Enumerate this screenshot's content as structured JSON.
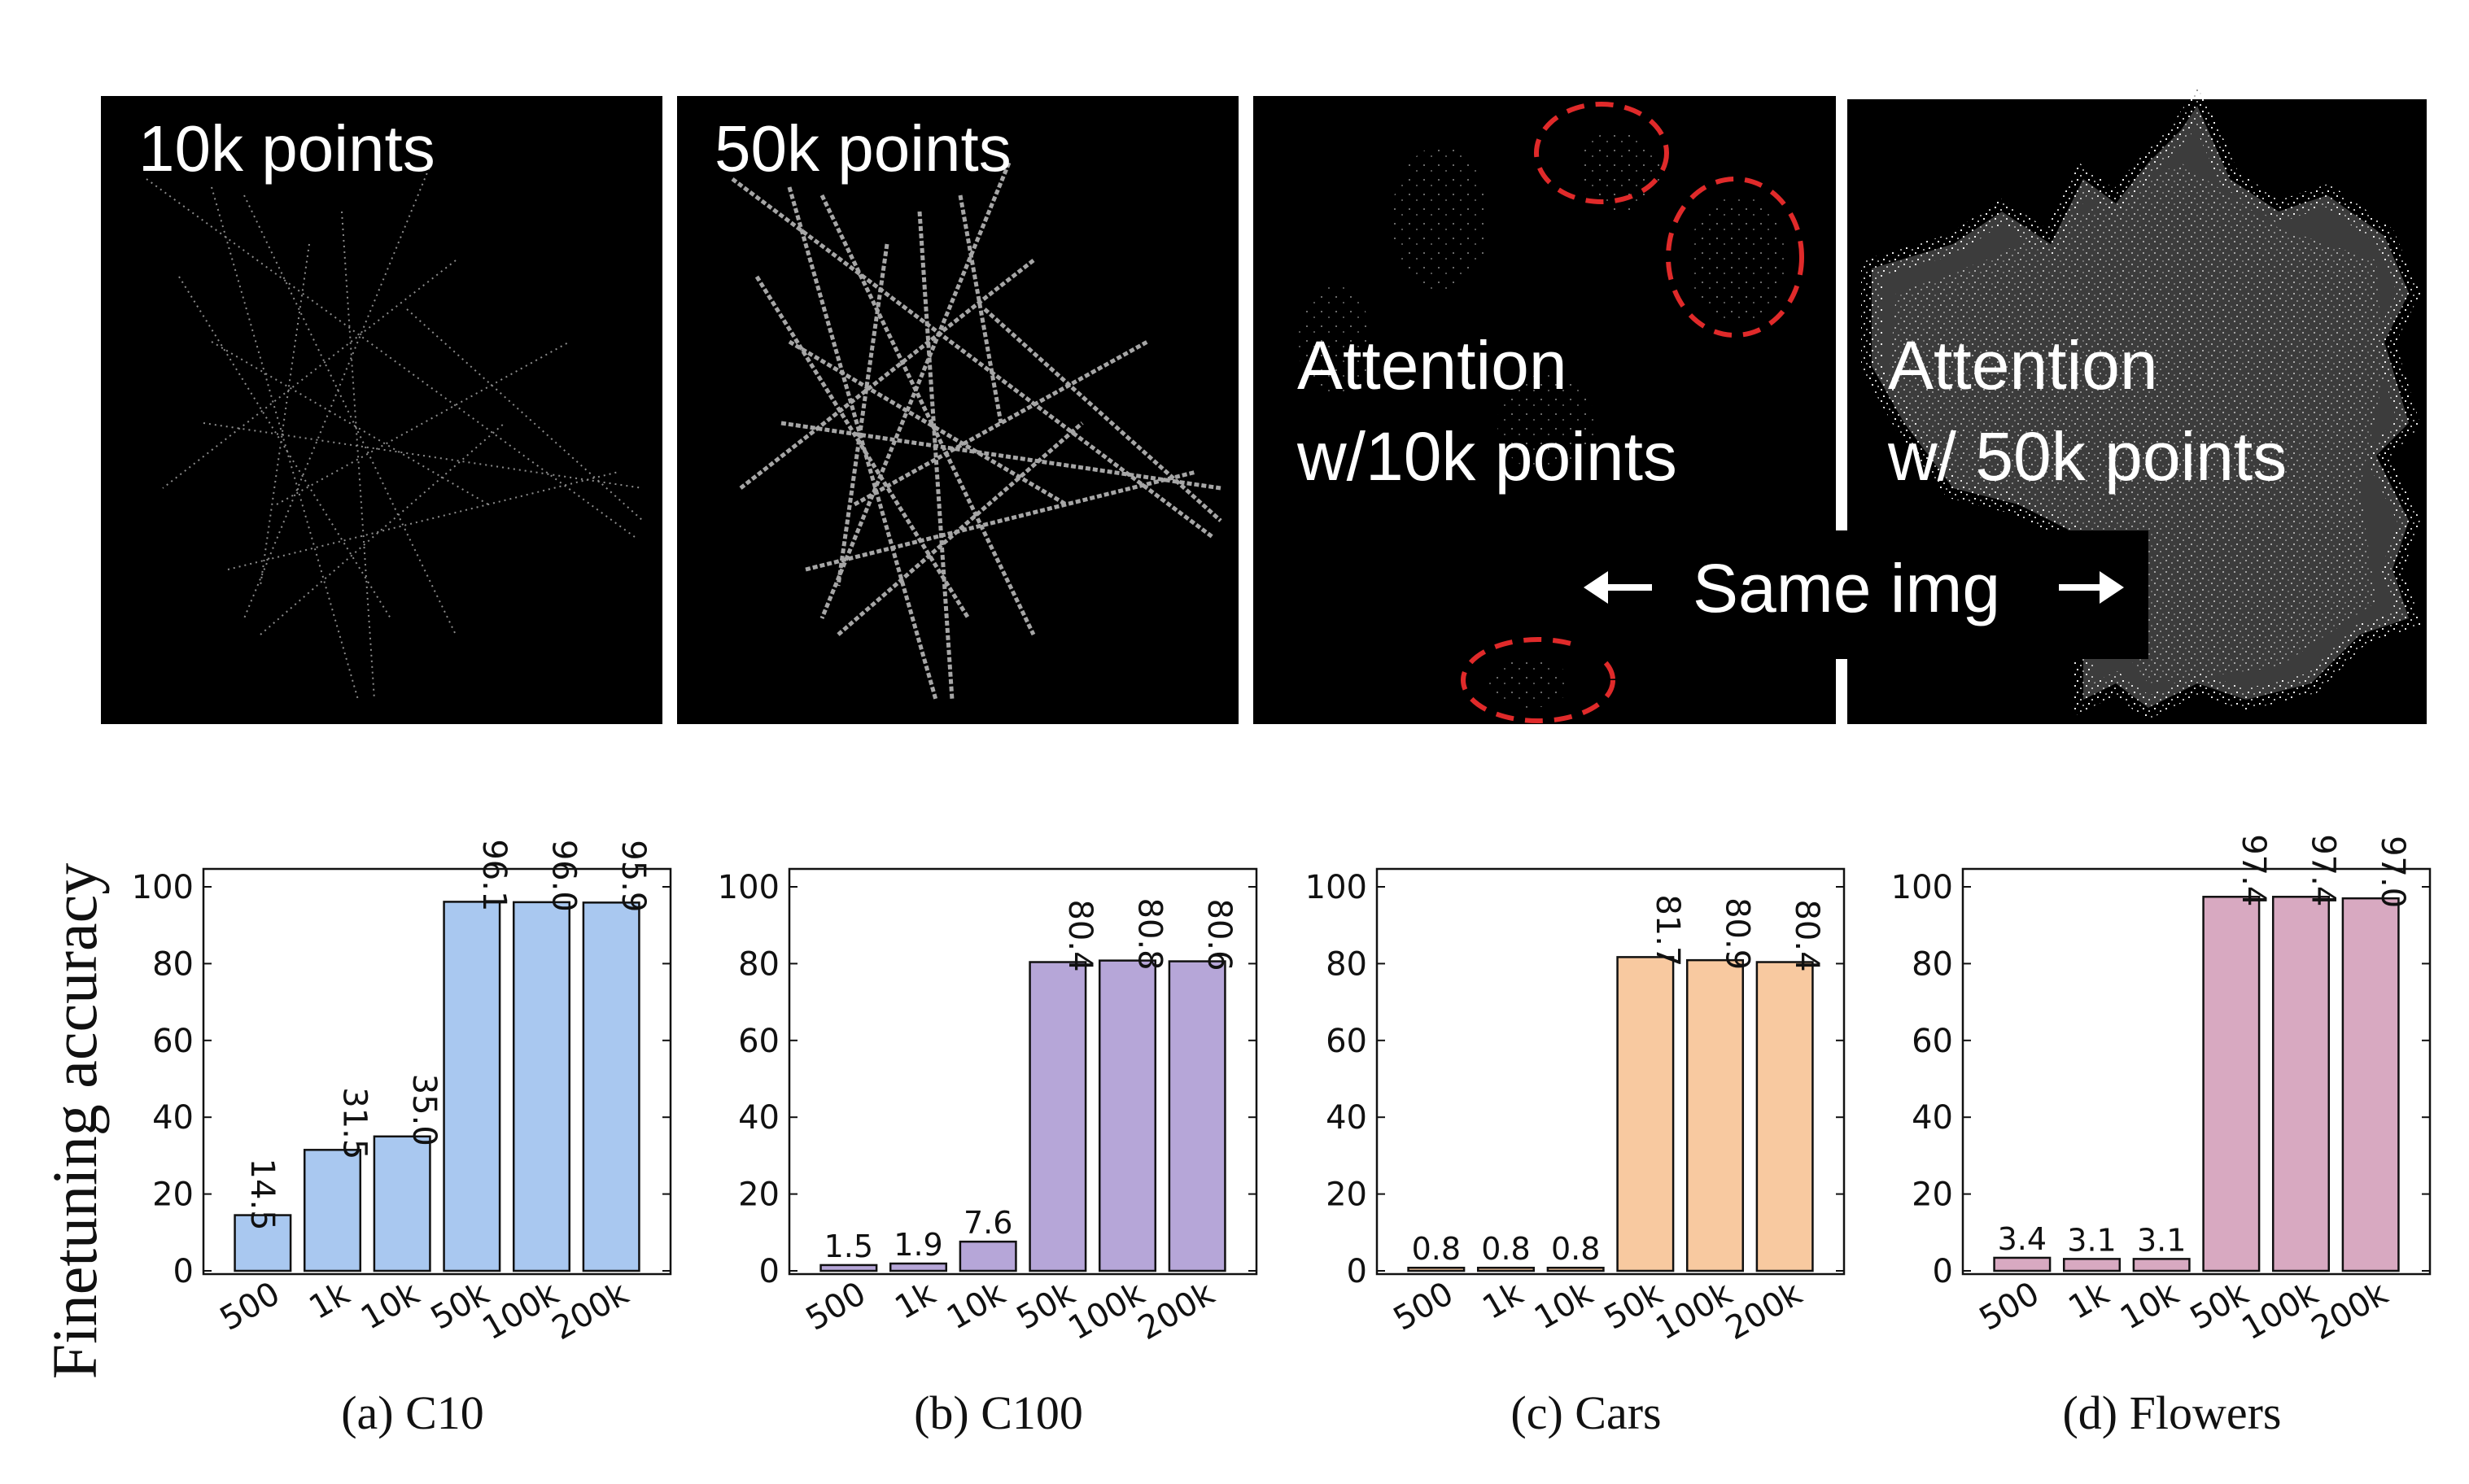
{
  "panels": [
    {
      "label": "10k points"
    },
    {
      "label": "50k points"
    },
    {
      "label_line1": "Attention",
      "label_line2": "w/10k points"
    },
    {
      "label_line1": "Attention",
      "label_line2": "w/ 50k points"
    }
  ],
  "same_img_label": "Same img",
  "ylabel": "Finetuning accuracy",
  "chart_data": [
    {
      "type": "bar",
      "caption": "(a)  C10",
      "categories": [
        "500",
        "1k",
        "10k",
        "50k",
        "100k",
        "200k"
      ],
      "values": [
        14.5,
        31.5,
        35.0,
        96.1,
        96.0,
        95.9
      ],
      "value_labels": [
        "14.5",
        "31.5",
        "35.0",
        "96.1",
        "96.0",
        "95.9"
      ],
      "color": "#a9c8f0",
      "ylim": [
        0,
        100
      ],
      "yticks": [
        "0",
        "20",
        "40",
        "60",
        "80",
        "100"
      ]
    },
    {
      "type": "bar",
      "caption": "(b)  C100",
      "categories": [
        "500",
        "1k",
        "10k",
        "50k",
        "100k",
        "200k"
      ],
      "values": [
        1.5,
        1.9,
        7.6,
        80.4,
        80.8,
        80.6
      ],
      "value_labels": [
        "1.5",
        "1.9",
        "7.6",
        "80.4",
        "80.8",
        "80.6"
      ],
      "color": "#b6a6d8",
      "ylim": [
        0,
        100
      ],
      "yticks": [
        "0",
        "20",
        "40",
        "60",
        "80",
        "100"
      ]
    },
    {
      "type": "bar",
      "caption": "(c)  Cars",
      "categories": [
        "500",
        "1k",
        "10k",
        "50k",
        "100k",
        "200k"
      ],
      "values": [
        0.8,
        0.8,
        0.8,
        81.7,
        80.9,
        80.4
      ],
      "value_labels": [
        "0.8",
        "0.8",
        "0.8",
        "81.7",
        "80.9",
        "80.4"
      ],
      "color": "#f8c9a0",
      "ylim": [
        0,
        100
      ],
      "yticks": [
        "0",
        "20",
        "40",
        "60",
        "80",
        "100"
      ]
    },
    {
      "type": "bar",
      "caption": "(d)  Flowers",
      "categories": [
        "500",
        "1k",
        "10k",
        "50k",
        "100k",
        "200k"
      ],
      "values": [
        3.4,
        3.1,
        3.1,
        97.4,
        97.4,
        97.0
      ],
      "value_labels": [
        "3.4",
        "3.1",
        "3.1",
        "97.4",
        "97.4",
        "97.0"
      ],
      "color": "#d8a9c1",
      "ylim": [
        0,
        100
      ],
      "yticks": [
        "0",
        "20",
        "40",
        "60",
        "80",
        "100"
      ]
    }
  ]
}
